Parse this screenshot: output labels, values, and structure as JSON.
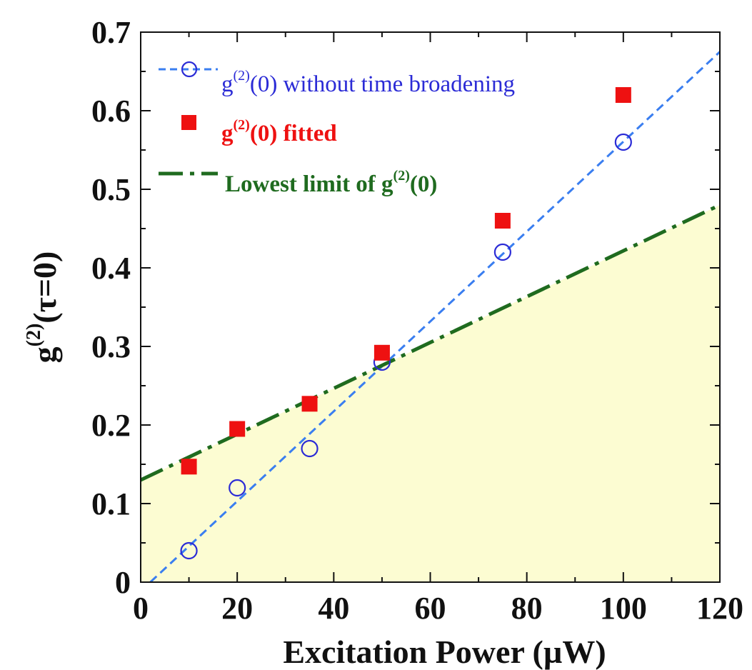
{
  "chart_data": {
    "type": "scatter",
    "xlabel": "Excitation Power (µW)",
    "ylabel": {
      "prefix": "g",
      "sup": "(2)",
      "suffix": "(τ=0)"
    },
    "xlim": [
      0,
      120
    ],
    "ylim": [
      0,
      0.7
    ],
    "x_ticks": [
      0,
      20,
      40,
      60,
      80,
      100,
      120
    ],
    "x_tick_labels": [
      "0",
      "20",
      "40",
      "60",
      "80",
      "100",
      "120"
    ],
    "y_ticks": [
      0,
      0.1,
      0.2,
      0.3,
      0.4,
      0.5,
      0.6,
      0.7
    ],
    "y_tick_labels": [
      "0",
      "0.1",
      "0.2",
      "0.3",
      "0.4",
      "0.5",
      "0.6",
      "0.7"
    ],
    "grid": false,
    "legend_position": "top-left",
    "series": [
      {
        "name": "g(2)(0) without time broadening",
        "legend": {
          "prefix": "g",
          "sup": "(2)",
          "suffix": "(0) without time broadening",
          "bold": false
        },
        "marker": "open-circle",
        "color": "#2b2bd6",
        "x": [
          10,
          20,
          35,
          50,
          75,
          100
        ],
        "y": [
          0.04,
          0.12,
          0.17,
          0.28,
          0.42,
          0.56
        ]
      },
      {
        "name": "g(2)(0) fitted",
        "legend": {
          "prefix": "g",
          "sup": "(2)",
          "suffix": "(0) fitted",
          "bold": true
        },
        "marker": "filled-square",
        "color": "#ee1111",
        "x": [
          10,
          20,
          35,
          50,
          75,
          100
        ],
        "y": [
          0.147,
          0.195,
          0.227,
          0.292,
          0.46,
          0.62
        ]
      }
    ],
    "lines": [
      {
        "name": "linear fit of g(2)(0) without time broadening",
        "style": "dashed",
        "color": "#3a7ef0",
        "x": [
          2,
          120
        ],
        "y": [
          0,
          0.675
        ]
      },
      {
        "name": "Lowest limit of g(2)(0)",
        "legend": {
          "prefix": "Lowest limit of g",
          "sup": "(2)",
          "suffix": "(0)",
          "bold": true
        },
        "style": "dash-dot",
        "color": "#1f6b1f",
        "x": [
          0,
          120
        ],
        "y": [
          0.13,
          0.48
        ]
      }
    ],
    "shaded_region": {
      "below_line": "Lowest limit of g(2)(0)",
      "color": "#fcfcd2"
    }
  }
}
